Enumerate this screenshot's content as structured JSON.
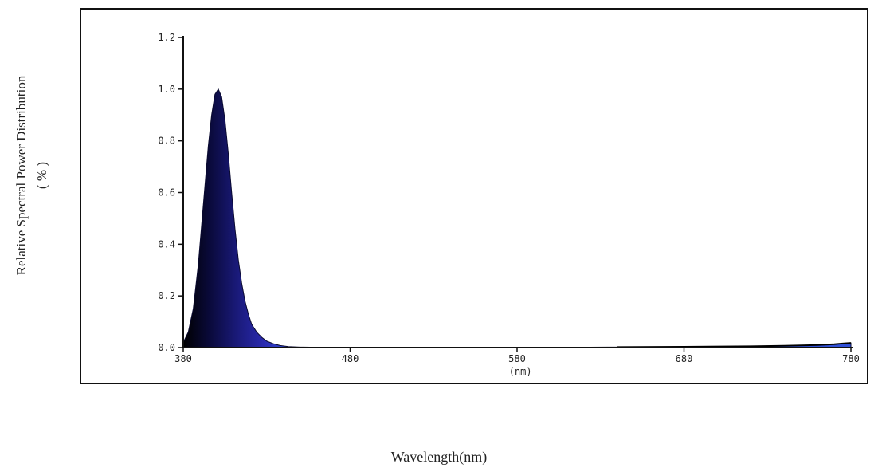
{
  "chart_data": {
    "type": "area",
    "ylabel_line1": "Relative Spectral Power Distribution",
    "ylabel_line2": "( % )",
    "x_unit_label": "(nm)",
    "bottom_label": "Wavelength(nm)",
    "xlim": [
      380,
      780
    ],
    "ylim": [
      0,
      1.2
    ],
    "x_ticks": [
      380,
      480,
      580,
      680,
      780
    ],
    "x_tick_labels": [
      "380",
      "480",
      "580",
      "680",
      "780"
    ],
    "y_ticks": [
      0.0,
      0.2,
      0.4,
      0.6,
      0.8,
      1.0,
      1.2
    ],
    "y_tick_labels": [
      "0.0",
      "0.2",
      "0.4",
      "0.6",
      "0.8",
      "1.0",
      "1.2"
    ],
    "grid": false,
    "fill_colors": [
      "#000000",
      "#0a0a3c",
      "#1a1a7a",
      "#2a2ab0",
      "#3050d8"
    ],
    "series": [
      {
        "x": [
          380,
          383,
          386,
          389,
          392,
          395,
          397,
          399,
          401,
          403,
          405,
          407,
          409,
          411,
          413,
          415,
          417,
          419,
          421,
          424,
          427,
          430,
          434,
          438,
          443,
          450,
          460,
          480,
          520,
          580,
          640,
          680,
          720,
          740,
          760,
          770,
          775,
          780
        ],
        "y": [
          0.02,
          0.06,
          0.15,
          0.32,
          0.55,
          0.78,
          0.9,
          0.98,
          1.0,
          0.97,
          0.88,
          0.75,
          0.6,
          0.46,
          0.34,
          0.25,
          0.18,
          0.13,
          0.09,
          0.06,
          0.04,
          0.025,
          0.015,
          0.008,
          0.004,
          0.002,
          0.001,
          0.0,
          0.0,
          0.0,
          0.002,
          0.003,
          0.005,
          0.007,
          0.01,
          0.013,
          0.016,
          0.018
        ]
      }
    ]
  }
}
